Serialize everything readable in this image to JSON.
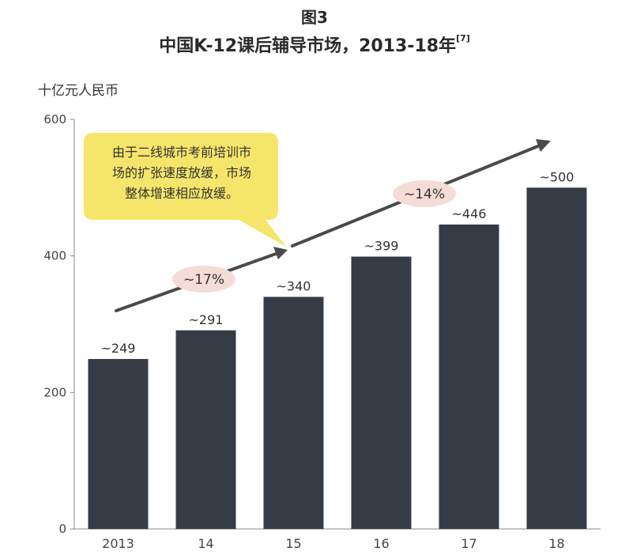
{
  "figure": {
    "label": "图3",
    "title": "中国K-12课后辅导市场，2013-18年",
    "ref": "[7]"
  },
  "colors": {
    "bar": "#363c45",
    "arrow": "#4a4a4a",
    "bubble": "#f5e56a",
    "growth_bg": "#f6dcd6"
  },
  "chart_data": {
    "type": "bar",
    "title": "中国K-12课后辅导市场，2013-18年",
    "ylabel": "十亿元人民币",
    "xlabel": "",
    "categories": [
      "2013",
      "14",
      "15",
      "16",
      "17",
      "18"
    ],
    "values": [
      249,
      291,
      340,
      399,
      446,
      500
    ],
    "data_labels": [
      "~249",
      "~291",
      "~340",
      "~399",
      "~446",
      "~500"
    ],
    "ylim": [
      0,
      600
    ],
    "yticks": [
      0,
      200,
      400,
      600
    ],
    "grid": false,
    "annotations": {
      "growth_1": "~17%",
      "growth_2": "~14%",
      "callout": "由于二线城市考前培训市\n场的扩张速度放缓，市场\n整体增速相应放缓。"
    }
  }
}
